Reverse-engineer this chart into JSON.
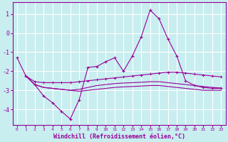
{
  "xlabel": "Windchill (Refroidissement éolien,°C)",
  "background_color": "#c8eef0",
  "grid_color": "#ffffff",
  "line_color": "#990099",
  "xlim": [
    -0.5,
    23.5
  ],
  "ylim": [
    -4.8,
    1.6
  ],
  "xticks": [
    0,
    1,
    2,
    3,
    4,
    5,
    6,
    7,
    8,
    9,
    10,
    11,
    12,
    13,
    14,
    15,
    16,
    17,
    18,
    19,
    20,
    21,
    22,
    23
  ],
  "yticks": [
    -4,
    -3,
    -2,
    -1,
    0,
    1
  ],
  "series_main": {
    "x": [
      0,
      1,
      2,
      3,
      4,
      5,
      6,
      7,
      8,
      9,
      10,
      11,
      12,
      13,
      14,
      15,
      16,
      17,
      18,
      19,
      20,
      21,
      22,
      23
    ],
    "y": [
      -1.3,
      -2.25,
      -2.7,
      -3.3,
      -3.65,
      -4.1,
      -4.5,
      -3.5,
      -1.8,
      -1.75,
      -1.5,
      -1.3,
      -2.0,
      -1.2,
      -0.2,
      1.2,
      0.75,
      -0.3,
      -1.2,
      -2.5,
      -2.75,
      -2.85,
      -2.9,
      -2.9
    ]
  },
  "series_line1": {
    "x": [
      1,
      2,
      3,
      4,
      5,
      6,
      7,
      8,
      9,
      10,
      11,
      12,
      13,
      14,
      15,
      16,
      17,
      18,
      19,
      20,
      21,
      22,
      23
    ],
    "y": [
      -2.25,
      -2.55,
      -2.6,
      -2.6,
      -2.6,
      -2.6,
      -2.55,
      -2.5,
      -2.45,
      -2.4,
      -2.35,
      -2.3,
      -2.25,
      -2.2,
      -2.15,
      -2.1,
      -2.05,
      -2.05,
      -2.1,
      -2.15,
      -2.2,
      -2.25,
      -2.3
    ]
  },
  "series_line2": {
    "x": [
      1,
      2,
      3,
      4,
      5,
      6,
      7,
      8,
      9,
      10,
      11,
      12,
      13,
      14,
      15,
      16,
      17,
      18,
      19,
      20,
      21,
      22,
      23
    ],
    "y": [
      -2.25,
      -2.7,
      -2.85,
      -2.9,
      -2.95,
      -3.0,
      -2.95,
      -2.85,
      -2.75,
      -2.7,
      -2.65,
      -2.62,
      -2.6,
      -2.58,
      -2.55,
      -2.55,
      -2.6,
      -2.65,
      -2.7,
      -2.75,
      -2.8,
      -2.85,
      -2.88
    ]
  },
  "series_line3": {
    "x": [
      1,
      2,
      3,
      4,
      5,
      6,
      7,
      8,
      9,
      10,
      11,
      12,
      13,
      14,
      15,
      16,
      17,
      18,
      19,
      20,
      21,
      22,
      23
    ],
    "y": [
      -2.25,
      -2.7,
      -2.85,
      -2.9,
      -2.95,
      -3.0,
      -3.05,
      -3.0,
      -2.95,
      -2.9,
      -2.85,
      -2.82,
      -2.8,
      -2.78,
      -2.75,
      -2.75,
      -2.8,
      -2.85,
      -2.9,
      -2.95,
      -3.0,
      -3.0,
      -3.0
    ]
  }
}
